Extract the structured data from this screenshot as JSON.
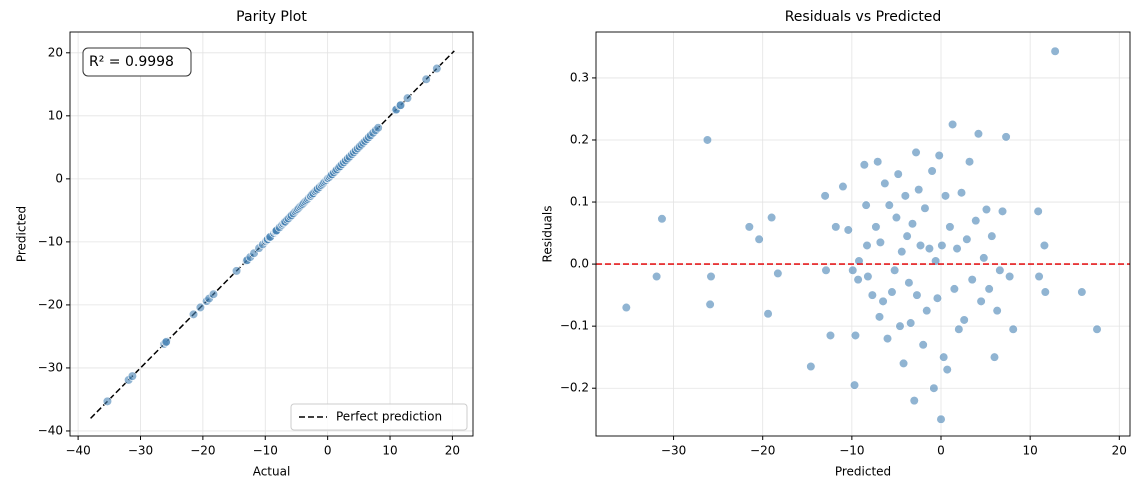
{
  "chart_data": [
    {
      "type": "scatter",
      "title": "Parity Plot",
      "x_label": "Actual",
      "y_label": "Predicted",
      "color": "#4682b4",
      "grid": true,
      "legend": "lower right",
      "annotation": "R² = 0.9998",
      "xlim": [
        -41.3,
        23.3
      ],
      "ylim": [
        -40.8,
        23.3
      ],
      "xticks": [
        {
          "value": -40,
          "label": "−40"
        },
        {
          "value": -30,
          "label": "−30"
        },
        {
          "value": -20,
          "label": "−20"
        },
        {
          "value": -10,
          "label": "−10"
        },
        0,
        10,
        20
      ],
      "yticks": [
        {
          "value": -40,
          "label": "−40"
        },
        {
          "value": -30,
          "label": "−30"
        },
        {
          "value": -20,
          "label": "−20"
        },
        {
          "value": -10,
          "label": "−10"
        },
        0,
        10,
        20
      ],
      "reference_line": {
        "name": "Perfect prediction",
        "x": [
          -38,
          20.3
        ],
        "y": [
          -38,
          20.3
        ],
        "color": "#000000",
        "dash": true
      },
      "x": [
        -35.3,
        -31.9,
        -31.3,
        -26.2,
        -25.8,
        -25.9,
        -21.5,
        -20.4,
        -19.4,
        -19.0,
        -18.3,
        -14.6,
        -13.0,
        -12.9,
        -12.4,
        -11.8,
        -11.0,
        -10.4,
        -9.9,
        -9.7,
        -9.6,
        -9.3,
        -9.2,
        -8.6,
        -8.4,
        -8.3,
        -8.2,
        -7.7,
        -7.3,
        -7.1,
        -6.9,
        -6.8,
        -6.5,
        -6.3,
        -6.0,
        -5.8,
        -5.5,
        -5.2,
        -5.0,
        -4.8,
        -4.6,
        -4.4,
        -4.2,
        -4.0,
        -3.8,
        -3.6,
        -3.4,
        -3.2,
        -3.0,
        -2.8,
        -2.7,
        -2.5,
        -2.3,
        -2.0,
        -1.8,
        -1.6,
        -1.3,
        -1.0,
        -0.8,
        -0.6,
        -0.4,
        -0.2,
        0.0,
        0.1,
        0.3,
        0.5,
        0.7,
        1.0,
        1.3,
        1.5,
        1.8,
        2.0,
        2.3,
        2.6,
        2.9,
        3.2,
        3.5,
        3.9,
        4.2,
        4.5,
        4.8,
        5.1,
        5.4,
        5.7,
        6.0,
        6.3,
        6.6,
        6.9,
        7.3,
        7.7,
        8.1,
        10.9,
        11.0,
        11.6,
        11.7,
        12.8,
        15.8,
        17.5
      ],
      "y": [
        -35.3,
        -31.9,
        -31.3,
        -26.2,
        -25.8,
        -25.9,
        -21.5,
        -20.4,
        -19.4,
        -19.0,
        -18.3,
        -14.6,
        -13.0,
        -12.9,
        -12.4,
        -11.8,
        -11.0,
        -10.4,
        -9.9,
        -9.7,
        -9.6,
        -9.3,
        -9.2,
        -8.6,
        -8.4,
        -8.3,
        -8.2,
        -7.7,
        -7.3,
        -7.1,
        -6.9,
        -6.8,
        -6.5,
        -6.3,
        -6.0,
        -5.8,
        -5.5,
        -5.2,
        -5.0,
        -4.8,
        -4.6,
        -4.4,
        -4.2,
        -4.0,
        -3.8,
        -3.6,
        -3.4,
        -3.2,
        -3.0,
        -2.8,
        -2.7,
        -2.5,
        -2.3,
        -2.0,
        -1.8,
        -1.6,
        -1.3,
        -1.0,
        -0.8,
        -0.6,
        -0.4,
        -0.2,
        0.0,
        0.1,
        0.3,
        0.5,
        0.7,
        1.0,
        1.3,
        1.5,
        1.8,
        2.0,
        2.3,
        2.6,
        2.9,
        3.2,
        3.5,
        3.9,
        4.2,
        4.5,
        4.8,
        5.1,
        5.4,
        5.7,
        6.0,
        6.3,
        6.6,
        6.9,
        7.3,
        7.7,
        8.1,
        10.9,
        11.0,
        11.6,
        11.7,
        12.8,
        15.8,
        17.5
      ]
    },
    {
      "type": "scatter",
      "title": "Residuals vs Predicted",
      "x_label": "Predicted",
      "y_label": "Residuals",
      "color": "#4682b4",
      "grid": true,
      "xlim": [
        -38.7,
        21.2
      ],
      "ylim": [
        -0.277,
        0.374
      ],
      "xticks": [
        {
          "value": -30,
          "label": "−30"
        },
        {
          "value": -20,
          "label": "−20"
        },
        {
          "value": -10,
          "label": "−10"
        },
        0,
        10,
        20
      ],
      "yticks": [
        {
          "value": -0.2,
          "label": "−0.2"
        },
        {
          "value": -0.1,
          "label": "−0.1"
        },
        {
          "value": 0,
          "label": "0.0"
        },
        0.1,
        0.2,
        0.3
      ],
      "hline": {
        "value": 0,
        "color": "#e41a1c",
        "dash": true
      },
      "x": [
        -35.3,
        -31.9,
        -31.3,
        -26.2,
        -25.8,
        -25.9,
        -21.5,
        -20.4,
        -19.4,
        -19.0,
        -18.3,
        -14.6,
        -13.0,
        -12.9,
        -12.4,
        -11.8,
        -11.0,
        -10.4,
        -9.9,
        -9.7,
        -9.6,
        -9.3,
        -9.2,
        -8.6,
        -8.4,
        -8.3,
        -8.2,
        -7.7,
        -7.3,
        -7.1,
        -6.9,
        -6.8,
        -6.5,
        -6.3,
        -6.0,
        -5.8,
        -5.5,
        -5.2,
        -5.0,
        -4.8,
        -4.6,
        -4.4,
        -4.2,
        -4.0,
        -3.8,
        -3.6,
        -3.4,
        -3.2,
        -3.0,
        -2.8,
        -2.7,
        -2.5,
        -2.3,
        -2.0,
        -1.8,
        -1.6,
        -1.3,
        -1.0,
        -0.8,
        -0.6,
        -0.4,
        -0.2,
        0.0,
        0.1,
        0.3,
        0.5,
        0.7,
        1.0,
        1.3,
        1.5,
        1.8,
        2.0,
        2.3,
        2.6,
        2.9,
        3.2,
        3.5,
        3.9,
        4.2,
        4.5,
        4.8,
        5.1,
        5.4,
        5.7,
        6.0,
        6.3,
        6.6,
        6.9,
        7.3,
        7.7,
        8.1,
        10.9,
        11.0,
        11.6,
        11.7,
        12.8,
        15.8,
        17.5
      ],
      "y": [
        -0.07,
        -0.02,
        0.073,
        0.2,
        -0.02,
        -0.065,
        0.06,
        0.04,
        -0.08,
        0.075,
        -0.015,
        -0.165,
        0.11,
        -0.01,
        -0.115,
        0.06,
        0.125,
        0.055,
        -0.01,
        -0.195,
        -0.115,
        -0.025,
        0.005,
        0.16,
        0.095,
        0.03,
        -0.02,
        -0.05,
        0.06,
        0.165,
        -0.085,
        0.035,
        -0.06,
        0.13,
        -0.12,
        0.095,
        -0.045,
        -0.01,
        0.075,
        0.145,
        -0.1,
        0.02,
        -0.16,
        0.11,
        0.045,
        -0.03,
        -0.095,
        0.065,
        -0.22,
        0.18,
        -0.05,
        0.12,
        0.03,
        -0.13,
        0.09,
        -0.075,
        0.025,
        0.15,
        -0.2,
        0.005,
        -0.055,
        0.175,
        -0.25,
        0.03,
        -0.15,
        0.11,
        -0.17,
        0.06,
        0.225,
        -0.04,
        0.025,
        -0.105,
        0.115,
        -0.09,
        0.04,
        0.165,
        -0.025,
        0.07,
        0.21,
        -0.06,
        0.01,
        0.088,
        -0.04,
        0.045,
        -0.15,
        -0.075,
        -0.01,
        0.085,
        0.205,
        -0.02,
        -0.105,
        0.085,
        -0.02,
        0.03,
        -0.045,
        0.343,
        -0.045,
        -0.105
      ]
    }
  ]
}
